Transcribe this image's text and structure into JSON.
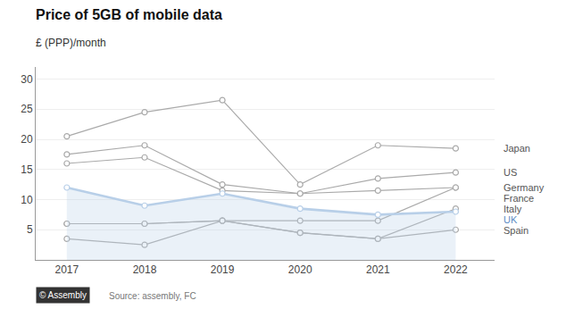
{
  "chart_data": {
    "type": "line",
    "title": "Price of 5GB of mobile data",
    "subtitle": "£ (PPP)/month",
    "x": [
      2017,
      2018,
      2019,
      2020,
      2021,
      2022
    ],
    "series": [
      {
        "name": "Japan",
        "color": "#aaaaaa",
        "type": "line",
        "values": [
          20.5,
          24.5,
          26.5,
          12.5,
          19.0,
          18.5
        ]
      },
      {
        "name": "US",
        "color": "#aaaaaa",
        "type": "line",
        "values": [
          17.5,
          19.0,
          12.5,
          11.0,
          13.5,
          14.5
        ]
      },
      {
        "name": "Germany",
        "color": "#aaaaaa",
        "type": "line",
        "values": [
          16.0,
          17.0,
          11.5,
          11.0,
          11.5,
          12.0
        ]
      },
      {
        "name": "France",
        "color": "#aaaaaa",
        "type": "line",
        "values": [
          6.0,
          6.0,
          6.5,
          6.5,
          6.5,
          12.0
        ]
      },
      {
        "name": "Italy",
        "color": "#aaaaaa",
        "type": "line",
        "values": [
          3.5,
          2.5,
          6.5,
          4.5,
          3.5,
          8.5
        ]
      },
      {
        "name": "UK",
        "color": "#b8cfe8",
        "type": "area",
        "values": [
          12.0,
          9.0,
          11.0,
          8.5,
          7.5,
          8.0
        ]
      },
      {
        "name": "Spain",
        "color": "#aaaaaa",
        "type": "line",
        "values": [
          6.0,
          6.0,
          6.5,
          4.5,
          3.5,
          5.0
        ]
      }
    ],
    "marker": "circle",
    "xlim": [
      2016.6,
      2022.5
    ],
    "xticks": [
      2017,
      2018,
      2019,
      2020,
      2021,
      2022
    ],
    "ylim": [
      0,
      32
    ],
    "yticks": [
      5,
      10,
      15,
      20,
      25,
      30
    ],
    "grid": "y",
    "annotations": [
      "© Assembly",
      "Source: assembly, FC"
    ]
  }
}
